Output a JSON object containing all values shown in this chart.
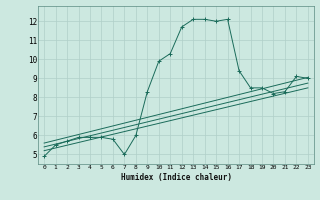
{
  "xlabel": "Humidex (Indice chaleur)",
  "xlim": [
    -0.5,
    23.5
  ],
  "ylim": [
    4.5,
    12.8
  ],
  "xticks": [
    0,
    1,
    2,
    3,
    4,
    5,
    6,
    7,
    8,
    9,
    10,
    11,
    12,
    13,
    14,
    15,
    16,
    17,
    18,
    19,
    20,
    21,
    22,
    23
  ],
  "yticks": [
    5,
    6,
    7,
    8,
    9,
    10,
    11,
    12
  ],
  "bg_color": "#cce8e0",
  "grid_color_major": "#b0cfc8",
  "grid_color_minor": "#b0cfc8",
  "line_color": "#1a6b5a",
  "line1_x": [
    0,
    1,
    2,
    3,
    4,
    5,
    6,
    7,
    8,
    9,
    10,
    11,
    12,
    13,
    14,
    15,
    16,
    17,
    18,
    19,
    20,
    21,
    22,
    23
  ],
  "line1_y": [
    4.9,
    5.5,
    5.7,
    5.9,
    5.9,
    5.9,
    5.8,
    5.0,
    6.0,
    8.3,
    9.9,
    10.3,
    11.7,
    12.1,
    12.1,
    12.0,
    12.1,
    9.4,
    8.5,
    8.5,
    8.2,
    8.3,
    9.1,
    9.0
  ],
  "line2_x": [
    0,
    23
  ],
  "line2_y": [
    5.6,
    9.05
  ],
  "line3_x": [
    0,
    23
  ],
  "line3_y": [
    5.4,
    8.75
  ],
  "line4_x": [
    0,
    23
  ],
  "line4_y": [
    5.2,
    8.5
  ]
}
